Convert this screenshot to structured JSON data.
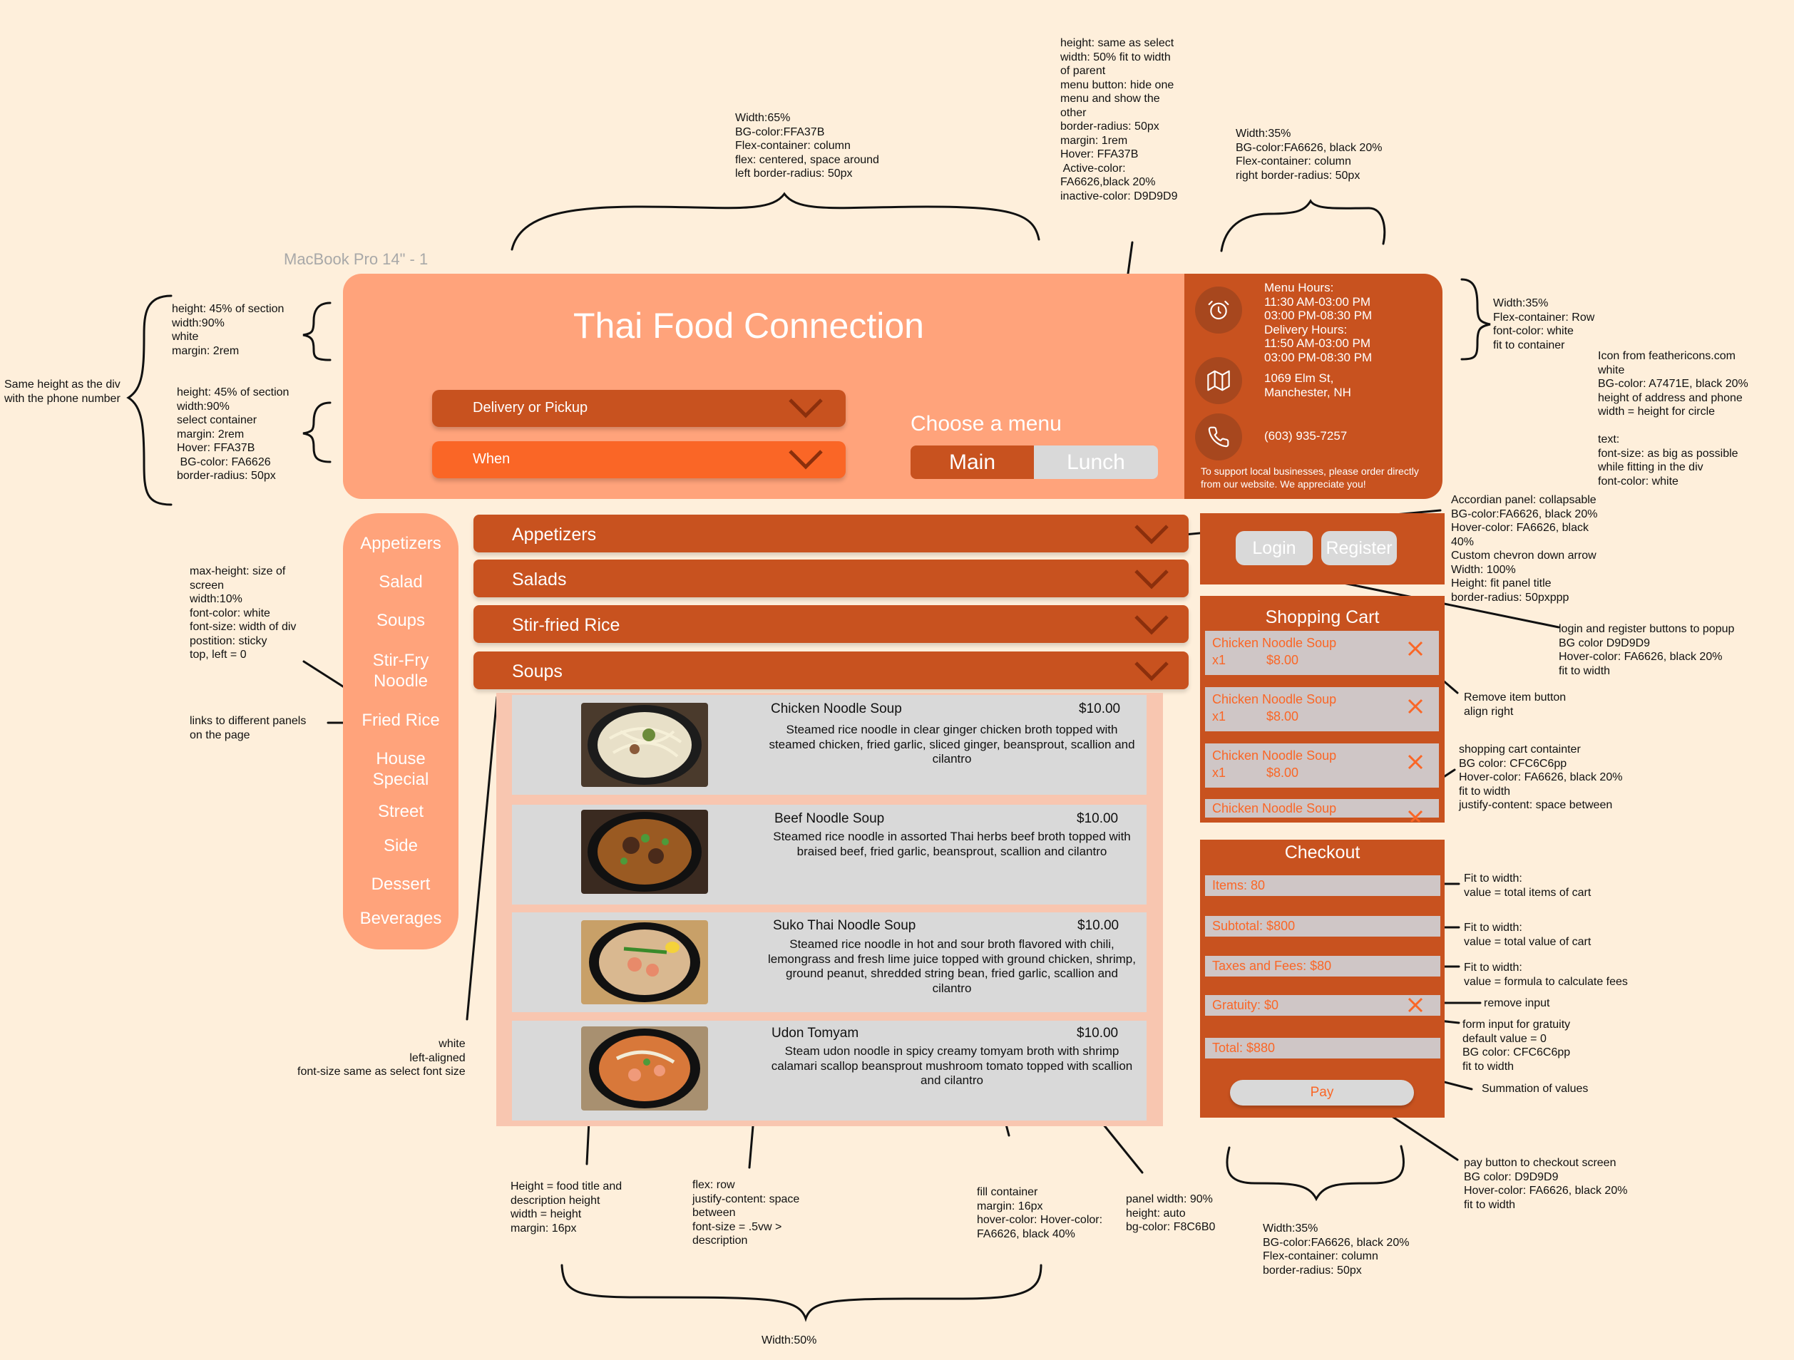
{
  "frame_label": "MacBook Pro 14\" - 1",
  "header": {
    "title": "Thai Food Connection",
    "select_delivery": "Delivery or Pickup",
    "select_when": "When",
    "choose_menu": "Choose a menu",
    "menu_main": "Main",
    "menu_lunch": "Lunch",
    "hours_text": "Menu Hours:\n11:30 AM-03:00 PM\n03:00 PM-08:30 PM\nDelivery Hours:\n11:50 AM-03:00 PM\n03:00 PM-08:30 PM",
    "address_text": "1069 Elm St,\nManchester, NH",
    "phone": "(603) 935-7257",
    "support_text": "To support local businesses, please order directly from our website. We appreciate you!"
  },
  "sidebar": {
    "links": [
      "Appetizers",
      "Salad",
      "Soups",
      "Stir-Fry\nNoodle",
      "Fried Rice",
      "House\nSpecial",
      "Street",
      "Side",
      "Dessert",
      "Beverages"
    ]
  },
  "accordion": {
    "panels": [
      "Appetizers",
      "Salads",
      "Stir-fried Rice",
      "Soups"
    ],
    "items": [
      {
        "title": "Chicken Noodle Soup",
        "price": "$10.00",
        "desc": "Steamed rice noodle in clear ginger chicken broth topped with steamed chicken, fried garlic, sliced ginger, beansprout, scallion and cilantro"
      },
      {
        "title": "Beef Noodle Soup",
        "price": "$10.00",
        "desc": "Steamed rice noodle in assorted Thai herbs beef broth topped with braised beef, fried garlic, beansprout, scallion and cilantro"
      },
      {
        "title": "Suko Thai Noodle Soup",
        "price": "$10.00",
        "desc": "Steamed rice noodle in hot and sour broth flavored with chili, lemongrass and fresh lime juice topped with ground chicken, shrimp, ground peanut, shredded string bean, fried garlic, scallion and cilantro"
      },
      {
        "title": "Udon Tomyam",
        "price": "$10.00",
        "desc": "Steam udon noodle in spicy creamy tomyam broth with shrimp calamari scallop beansprout mushroom tomato topped with scallion and cilantro"
      }
    ]
  },
  "auth": {
    "login": "Login",
    "register": "Register"
  },
  "cart": {
    "title": "Shopping Cart",
    "items": [
      {
        "name": "Chicken Noodle Soup",
        "qty": "x1",
        "price": "$8.00"
      },
      {
        "name": "Chicken Noodle Soup",
        "qty": "x1",
        "price": "$8.00"
      },
      {
        "name": "Chicken Noodle Soup",
        "qty": "x1",
        "price": "$8.00"
      },
      {
        "name": "Chicken Noodle Soup",
        "qty": "",
        "price": ""
      }
    ]
  },
  "checkout": {
    "title": "Checkout",
    "items": "Items: 80",
    "subtotal": "Subtotal: $800",
    "taxes": "Taxes and Fees: $80",
    "gratuity": "Gratuity: $0",
    "total": "Total: $880",
    "pay": "Pay"
  },
  "colors": {
    "page_bg": "#FEEFDB",
    "header_bg": "#FFA37B",
    "dark_orange": "#C8521F",
    "accent": "#FA6626",
    "gray": "#D9D9D9",
    "panel_bg": "#F8C6B0",
    "input_bg": "#CFC6C6"
  },
  "icons": [
    "alarm-clock-icon",
    "map-icon",
    "phone-icon",
    "chevron-down-icon",
    "close-icon"
  ],
  "annotations": {
    "a1": "Width:65%\nBG-color:FFA37B\nFlex-container: column\nflex: centered, space around\nleft border-radius: 50px",
    "a2": "height: same as select\nwidth: 50% fit to width\nof parent\nmenu button: hide one\nmenu and show the\nother\nborder-radius: 50px\nmargin: 1rem\nHover: FFA37B\n Active-color:\nFA6626,black 20%\ninactive-color: D9D9D9",
    "a3": "Width:35%\nBG-color:FA6626, black 20%\nFlex-container: column\nright border-radius: 50px",
    "a4": "height: 45% of section\nwidth:90%\nwhite\nmargin: 2rem",
    "a5": "Same height as the div\nwith the phone number",
    "a6": "height: 45% of section\nwidth:90%\nselect container\nmargin: 2rem\nHover: FFA37B\n BG-color: FA6626\nborder-radius: 50px",
    "a7": "Width:35%\nFlex-container: Row\nfont-color: white\nfit to container",
    "a8": "Icon from feathericons.com\nwhite\nBG-color: A7471E, black 20%\nheight of address and phone\nwidth = height for circle\n\ntext:\nfont-size: as big as possible\nwhile fitting in the div\nfont-color: white",
    "a9": "Accordian panel: collapsable\nBG-color:FA6626, black 20%\nHover-color: FA6626, black\n40%\nCustom chevron down arrow\nWidth: 100%\nHeight: fit panel title\nborder-radius: 50pxppp",
    "a10": "max-height: size of\nscreen\nwidth:10%\nfont-color: white\nfont-size: width of div\npostition: sticky\ntop, left = 0",
    "a11": "links to different panels\non the page",
    "a12": "login and register buttons to popup\nBG color D9D9D9\nHover-color: FA6626, black 20%\nfit to width",
    "a13": "Remove item button\nalign right",
    "a14": "shopping cart containter\nBG color: CFC6C6pp\nHover-color: FA6626, black 20%\nfit to width\njustify-content: space between",
    "a15": "Fit to width:\nvalue = total items of cart",
    "a16": "Fit to width:\nvalue = total value of cart",
    "a17": "Fit to width:\nvalue = formula to calculate fees",
    "a18": "remove input",
    "a19": "form input for gratuity\ndefault value = 0\nBG color: CFC6C6pp\nfit to width",
    "a20": "Summation of values",
    "a21": "white\nleft-aligned\nfont-size same as select font size",
    "a22": "pay button to checkout screen\nBG color: D9D9D9\nHover-color: FA6626, black 20%\nfit to width",
    "a23": "Height = food title and\ndescription height\nwidth = height\nmargin: 16px",
    "a24": "flex: row\njustify-content: space\nbetween\nfont-size = .5vw >\ndescription",
    "a25": "fill container\nmargin: 16px\nhover-color: Hover-color:\nFA6626, black 40%",
    "a26": "panel width: 90%\nheight: auto\nbg-color: F8C6B0",
    "a27": "Width:35%\nBG-color:FA6626, black 20%\nFlex-container: column\nborder-radius: 50px",
    "a28": "Width:50%"
  }
}
